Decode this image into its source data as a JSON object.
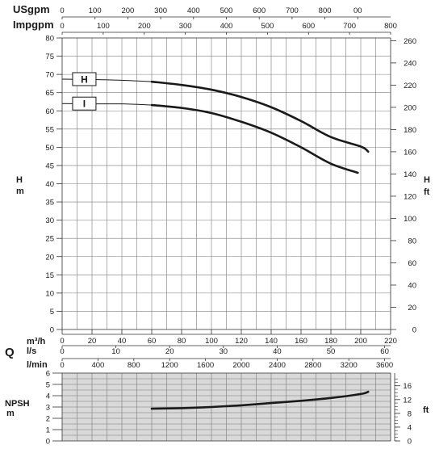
{
  "chart_data": [
    {
      "type": "line",
      "x_unit": "Q (m³/h)",
      "xlim": [
        0,
        220
      ],
      "ylim": [
        0,
        80
      ],
      "y_label_left": [
        "H",
        "m"
      ],
      "y_label_right": [
        "H",
        "ft"
      ],
      "y_ticks_left": [
        0,
        5,
        10,
        15,
        20,
        25,
        30,
        35,
        40,
        45,
        50,
        55,
        60,
        65,
        70,
        75,
        80
      ],
      "y_ticks_right": [
        0,
        20,
        40,
        60,
        80,
        100,
        120,
        140,
        160,
        180,
        200,
        220,
        240,
        260
      ],
      "grid": true,
      "series": [
        {
          "name": "H",
          "x": [
            0,
            20,
            40,
            60,
            80,
            100,
            120,
            140,
            160,
            180,
            200,
            205
          ],
          "values": [
            68.7,
            68.6,
            68.4,
            68.0,
            67.1,
            65.8,
            63.8,
            61.0,
            57.2,
            52.8,
            50.2,
            48.8
          ]
        },
        {
          "name": "I",
          "x": [
            0,
            20,
            40,
            60,
            80,
            100,
            120,
            140,
            160,
            180,
            198
          ],
          "values": [
            62.0,
            61.9,
            61.9,
            61.6,
            60.8,
            59.4,
            57.0,
            54.0,
            50.0,
            45.5,
            43.0
          ]
        }
      ]
    },
    {
      "type": "line",
      "x_unit": "Q (m³/h)",
      "xlim": [
        0,
        220
      ],
      "ylim": [
        0,
        6
      ],
      "y_label_left": [
        "NPSH",
        "m"
      ],
      "y_label_right": [
        "ft"
      ],
      "y_ticks_left": [
        0,
        1,
        2,
        3,
        4,
        5,
        6
      ],
      "y_ticks_right": [
        0,
        4,
        8,
        12,
        16
      ],
      "grid": true,
      "series": [
        {
          "x": [
            60,
            80,
            100,
            120,
            140,
            160,
            180,
            200,
            205
          ],
          "values": [
            2.85,
            2.9,
            3.0,
            3.15,
            3.35,
            3.55,
            3.8,
            4.15,
            4.35
          ]
        }
      ]
    }
  ],
  "top_axes": [
    {
      "label": "USgpm",
      "max": 1000,
      "ticks": [
        "0",
        "100",
        "200",
        "300",
        "400",
        "500",
        "600",
        "700",
        "800",
        "00"
      ]
    },
    {
      "label": "Impgpm",
      "max": 800,
      "ticks": [
        "0",
        "100",
        "200",
        "300",
        "400",
        "500",
        "600",
        "700",
        "800"
      ]
    }
  ],
  "bottom_axes": {
    "q_label": "Q",
    "m3h": {
      "label": "m³/h",
      "ticks": [
        0,
        20,
        40,
        60,
        80,
        100,
        120,
        140,
        160,
        180,
        200,
        220
      ]
    },
    "ls": {
      "label": "l/s",
      "max": 61.111,
      "ticks": [
        0,
        10,
        20,
        30,
        40,
        50,
        60
      ]
    },
    "lmin": {
      "label": "l/min",
      "max": 3666.67,
      "ticks": [
        0,
        400,
        800,
        1200,
        1600,
        2000,
        2400,
        2800,
        3200,
        3600
      ]
    }
  },
  "colors": {
    "curve": "#1a1a1a",
    "npsh_bg": "#d9d9d9",
    "grid": "#7a7a7a"
  }
}
